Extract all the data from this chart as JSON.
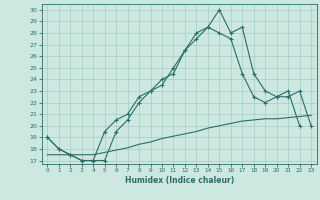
{
  "xlabel": "Humidex (Indice chaleur)",
  "ylabel": "",
  "bg_color": "#cce8e0",
  "grid_color": "#a8ccc4",
  "line_color": "#2a6e68",
  "xlim": [
    -0.5,
    23.5
  ],
  "ylim": [
    16.7,
    30.5
  ],
  "yticks": [
    17,
    18,
    19,
    20,
    21,
    22,
    23,
    24,
    25,
    26,
    27,
    28,
    29,
    30
  ],
  "xticks": [
    0,
    1,
    2,
    3,
    4,
    5,
    6,
    7,
    8,
    9,
    10,
    11,
    12,
    13,
    14,
    15,
    16,
    17,
    18,
    19,
    20,
    21,
    22,
    23
  ],
  "series1_x": [
    0,
    1,
    2,
    3,
    4,
    5,
    6,
    7,
    8,
    9,
    10,
    11,
    12,
    13,
    14,
    15,
    16,
    17,
    18,
    19,
    20,
    21,
    22,
    23
  ],
  "series1_y": [
    19.0,
    18.0,
    17.5,
    17.0,
    17.0,
    17.0,
    19.5,
    20.5,
    22.0,
    23.0,
    24.0,
    24.5,
    26.5,
    28.0,
    28.5,
    30.0,
    28.0,
    28.5,
    24.5,
    23.0,
    22.5,
    23.0,
    20.0,
    null
  ],
  "series2_x": [
    0,
    1,
    2,
    3,
    4,
    5,
    6,
    7,
    8,
    9,
    10,
    11,
    12,
    13,
    14,
    15,
    16,
    17,
    18,
    19,
    20,
    21,
    22,
    23
  ],
  "series2_y": [
    19.0,
    18.0,
    17.5,
    17.0,
    17.0,
    19.5,
    20.5,
    21.0,
    22.5,
    23.0,
    23.5,
    25.0,
    26.5,
    27.5,
    28.5,
    28.0,
    27.5,
    24.5,
    22.5,
    22.0,
    22.5,
    22.5,
    23.0,
    20.0
  ],
  "series3_x": [
    0,
    1,
    2,
    3,
    4,
    5,
    6,
    7,
    8,
    9,
    10,
    11,
    12,
    13,
    14,
    15,
    16,
    17,
    18,
    19,
    20,
    21,
    22,
    23
  ],
  "series3_y": [
    17.5,
    17.5,
    17.5,
    17.5,
    17.5,
    17.7,
    17.9,
    18.1,
    18.4,
    18.6,
    18.9,
    19.1,
    19.3,
    19.5,
    19.8,
    20.0,
    20.2,
    20.4,
    20.5,
    20.6,
    20.6,
    20.7,
    20.8,
    20.9
  ]
}
